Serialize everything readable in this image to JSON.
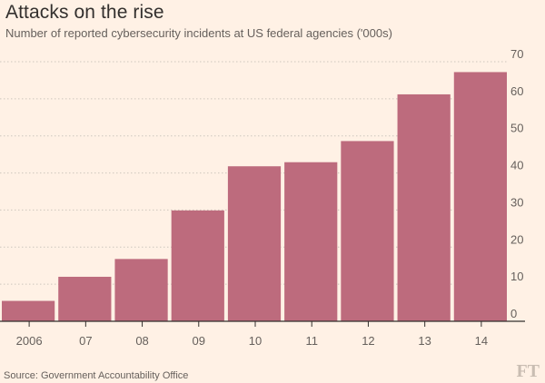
{
  "title": "Attacks on the rise",
  "subtitle": "Number of reported cybersecurity incidents at US federal agencies ('000s)",
  "source": "Source: Government Accountability Office",
  "brand": "FT",
  "colors": {
    "background": "#fff1e5",
    "bar": "#bd6b7d",
    "grid": "#cec6bd",
    "axis": "#33302e"
  },
  "chart_data": {
    "type": "bar",
    "title": "Attacks on the rise",
    "subtitle": "Number of reported cybersecurity incidents at US federal agencies ('000s)",
    "categories": [
      "2006",
      "07",
      "08",
      "09",
      "10",
      "11",
      "12",
      "13",
      "14"
    ],
    "values": [
      5.5,
      12,
      16.8,
      29.9,
      41.8,
      42.9,
      48.6,
      61.2,
      67.2
    ],
    "xlabel": "",
    "ylabel": "",
    "ylim": [
      0,
      70
    ],
    "yticks": [
      0,
      10,
      20,
      30,
      40,
      50,
      60,
      70
    ],
    "y_axis_side": "right",
    "grid": true
  }
}
